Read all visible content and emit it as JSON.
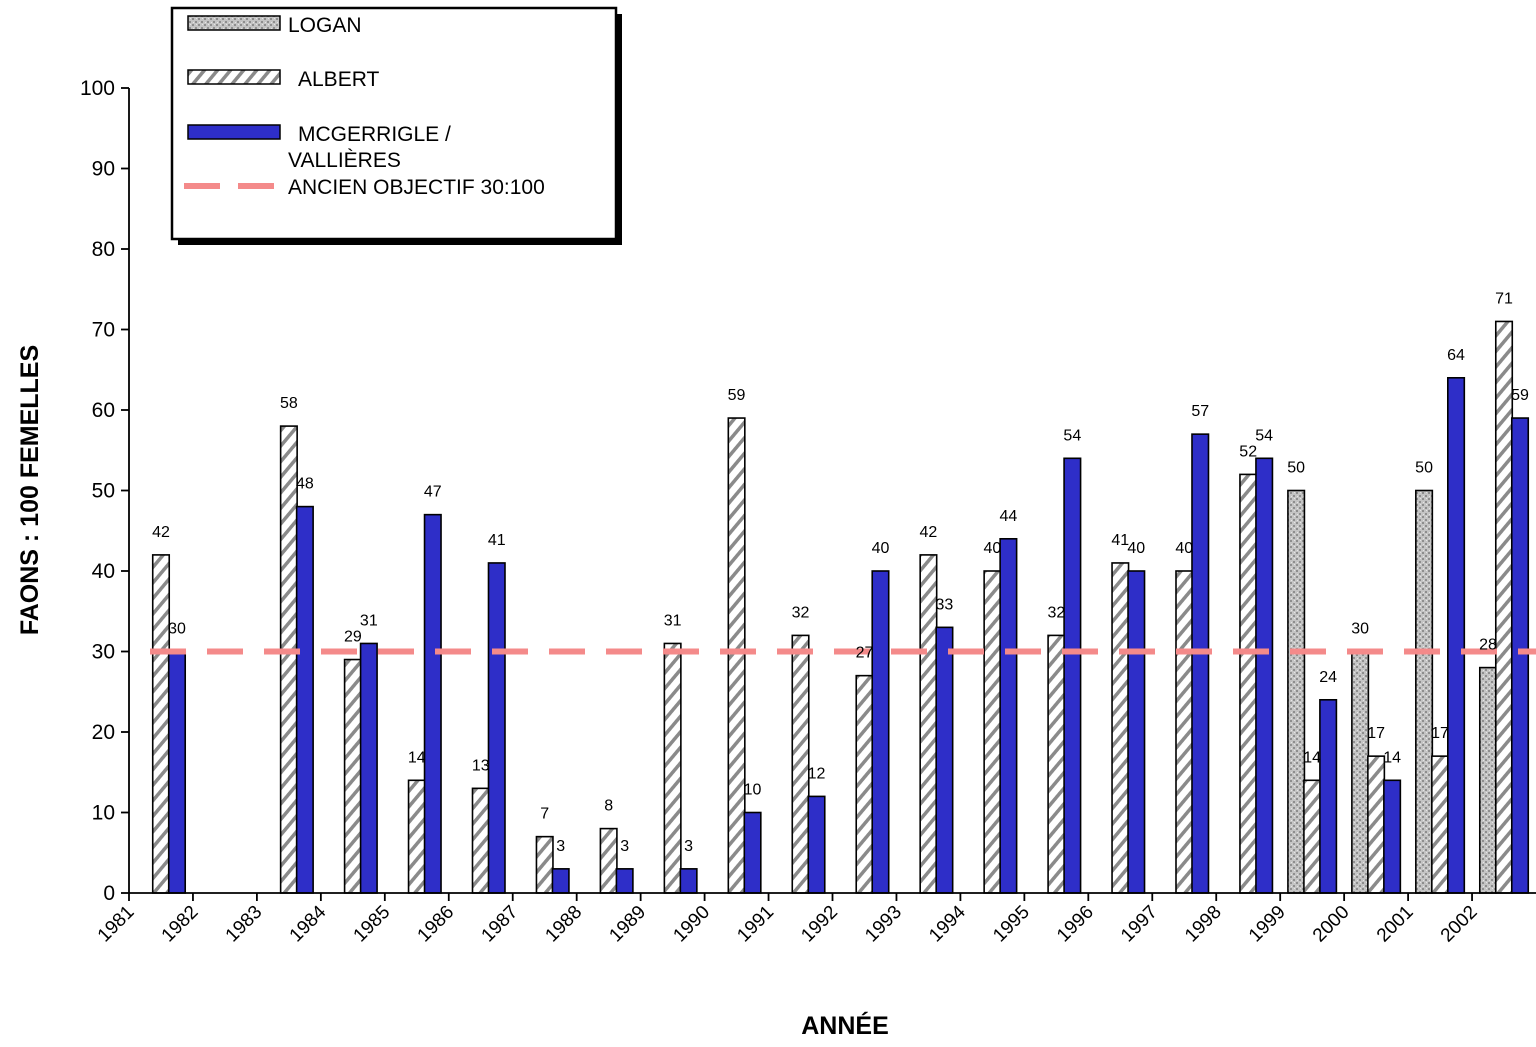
{
  "chart_data": {
    "type": "bar",
    "title": "",
    "xlabel": "ANNÉE",
    "ylabel": "FAONS : 100 FEMELLES",
    "ylim": [
      0,
      100
    ],
    "yticks": [
      0,
      10,
      20,
      30,
      40,
      50,
      60,
      70,
      80,
      90,
      100
    ],
    "grid": false,
    "legend_position": "top-left",
    "categories": [
      "1981",
      "1982",
      "1983",
      "1984",
      "1985",
      "1986",
      "1987",
      "1988",
      "1989",
      "1990",
      "1991",
      "1992",
      "1993",
      "1994",
      "1995",
      "1996",
      "1997",
      "1998",
      "1999",
      "2000",
      "2001",
      "2002"
    ],
    "series": [
      {
        "name": "LOGAN",
        "pattern": "stipple",
        "color": "#b8b8b8",
        "values": [
          null,
          null,
          null,
          null,
          null,
          null,
          null,
          null,
          null,
          null,
          null,
          null,
          null,
          null,
          null,
          null,
          null,
          null,
          50,
          30,
          50,
          28
        ]
      },
      {
        "name": "ALBERT",
        "pattern": "hatch",
        "color": "#ffffff",
        "values": [
          42,
          null,
          58,
          29,
          14,
          13,
          7,
          8,
          31,
          59,
          32,
          27,
          42,
          40,
          32,
          41,
          40,
          52,
          14,
          17,
          17,
          71
        ]
      },
      {
        "name": "MCGERRIGLE / VALLIÈRES",
        "pattern": "solid",
        "color": "#2e2ec8",
        "values": [
          30,
          null,
          48,
          31,
          47,
          41,
          3,
          3,
          3,
          10,
          12,
          40,
          33,
          44,
          54,
          40,
          57,
          54,
          24,
          14,
          64,
          59
        ]
      }
    ],
    "reference_line": {
      "name": "ANCIEN OBJECTIF 30:100",
      "value": 30,
      "color": "#f48a8a"
    },
    "legend": {
      "logan": "LOGAN",
      "albert": "ALBERT",
      "mcg_line1": "MCGERRIGLE /",
      "mcg_line2": "VALLIÈRES",
      "objectif": "ANCIEN OBJECTIF 30:100"
    }
  }
}
